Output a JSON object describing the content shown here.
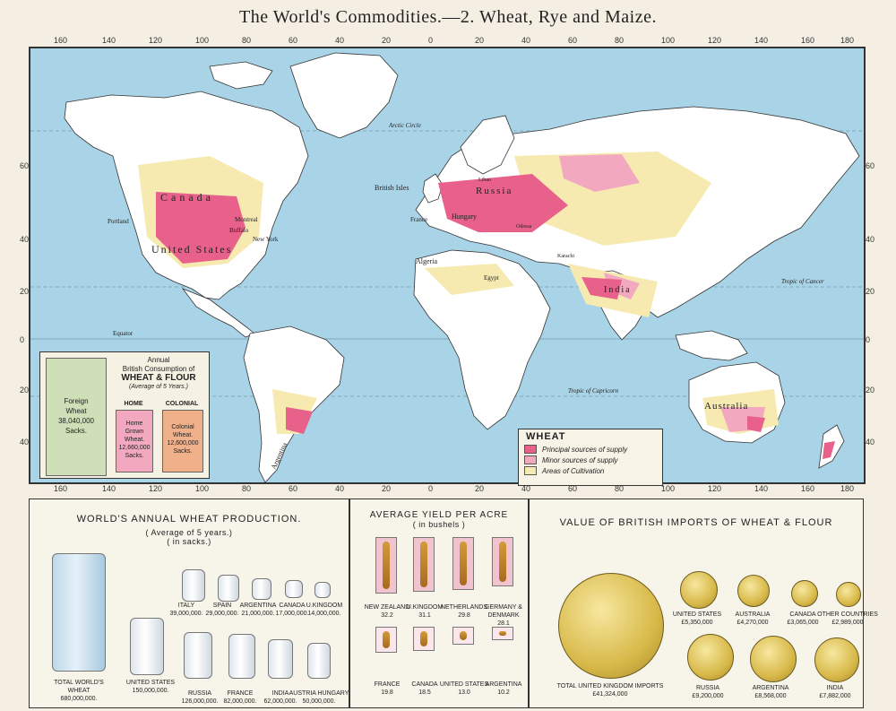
{
  "title": "The World's Commodities.—2. Wheat, Rye and Maize.",
  "scale": {
    "top": [
      "160",
      "140",
      "120",
      "100",
      "80",
      "60",
      "40",
      "20",
      "0",
      "20",
      "40",
      "60",
      "80",
      "100",
      "120",
      "140",
      "160",
      "180"
    ],
    "bottom": [
      "160",
      "140",
      "120",
      "100",
      "80",
      "60",
      "40",
      "20",
      "0",
      "20",
      "40",
      "60",
      "80",
      "100",
      "120",
      "140",
      "160",
      "180"
    ],
    "left": [
      "60",
      "40",
      "20",
      "0",
      "20",
      "40"
    ],
    "right": [
      "60",
      "40",
      "20",
      "0",
      "20",
      "40"
    ]
  },
  "map_labels": {
    "arctic": "Arctic Circle",
    "cancer": "Tropic of Cancer",
    "equator": "Equator",
    "capricorn": "Tropic of Capricorn",
    "canada": "Canada",
    "portland": "Portland",
    "montreal": "Montreal",
    "buffalo": "Buffalo",
    "newyork": "New York",
    "us": "United States",
    "british_isles": "British Isles",
    "russia": "Russia",
    "libau": "Libau",
    "odessa": "Odessa",
    "france": "France",
    "hungary": "Hungary",
    "algeria": "Algeria",
    "egypt": "Egypt",
    "karachi": "Karachi",
    "india": "India",
    "argentina": "Argentina",
    "australia": "Australia"
  },
  "consumption": {
    "annual": "Annual",
    "line1": "British Consumption of",
    "line2": "WHEAT & FLOUR",
    "line3": "(Average of 5 Years.)",
    "foreign": [
      "Foreign",
      "Wheat",
      "38,040,000",
      "Sacks."
    ],
    "home_head": "HOME",
    "home": [
      "Home",
      "Grown",
      "Wheat.",
      "12,660,000",
      "Sacks."
    ],
    "colonial_head": "COLONIAL",
    "colonial": [
      "Colonial",
      "Wheat.",
      "12,600,000",
      "Sacks."
    ]
  },
  "legend": {
    "title": "WHEAT",
    "items": [
      {
        "label": "Principal sources of supply",
        "color": "#e8618a"
      },
      {
        "label": "Minor sources of supply",
        "color": "#f2a9c0"
      },
      {
        "label": "Areas of Cultivation",
        "color": "#f6eab0"
      }
    ]
  },
  "production": {
    "title": "WORLD'S ANNUAL WHEAT PRODUCTION.",
    "sub1": "( Average of 5 years.)",
    "sub2": "( in sacks.)",
    "items": [
      {
        "name": "TOTAL WORLD'S WHEAT",
        "value": "680,000,000."
      },
      {
        "name": "UNITED STATES",
        "value": "150,000,000."
      },
      {
        "name": "RUSSIA",
        "value": "126,000,000."
      },
      {
        "name": "FRANCE",
        "value": "82,000,000."
      },
      {
        "name": "INDIA",
        "value": "62,000,000."
      },
      {
        "name": "AUSTRIA HUNGARY",
        "value": "50,000,000."
      },
      {
        "name": "ITALY",
        "value": "39,000,000."
      },
      {
        "name": "SPAIN",
        "value": "29,000,000."
      },
      {
        "name": "ARGENTINA",
        "value": "21,000,000."
      },
      {
        "name": "CANADA",
        "value": "17,000,000."
      },
      {
        "name": "U.KINGDOM",
        "value": "14,000,000."
      }
    ]
  },
  "yield": {
    "title": "AVERAGE YIELD PER ACRE",
    "sub": "( in bushels )",
    "items": [
      {
        "name": "NEW ZEALAND",
        "value": "32.2"
      },
      {
        "name": "U.KINGDOM",
        "value": "31.1"
      },
      {
        "name": "NETHERLANDS",
        "value": "29.8"
      },
      {
        "name": "GERMANY & DENMARK",
        "value": "28.1"
      },
      {
        "name": "FRANCE",
        "value": "19.8"
      },
      {
        "name": "CANADA",
        "value": "18.5"
      },
      {
        "name": "UNITED STATES",
        "value": "13.0"
      },
      {
        "name": "ARGENTINA",
        "value": "10.2"
      }
    ]
  },
  "imports": {
    "title": "VALUE OF BRITISH IMPORTS OF WHEAT & FLOUR",
    "total": {
      "name": "TOTAL UNITED KINGDOM IMPORTS",
      "value": "£41,324,000"
    },
    "items": [
      {
        "name": "UNITED STATES",
        "value": "£5,350,000"
      },
      {
        "name": "AUSTRALIA",
        "value": "£4,270,000"
      },
      {
        "name": "CANADA",
        "value": "£3,065,000"
      },
      {
        "name": "OTHER COUNTRIES",
        "value": "£2,989,000"
      },
      {
        "name": "RUSSIA",
        "value": "£9,200,000"
      },
      {
        "name": "ARGENTINA",
        "value": "£8,568,000"
      },
      {
        "name": "INDIA",
        "value": "£7,882,000"
      }
    ]
  }
}
